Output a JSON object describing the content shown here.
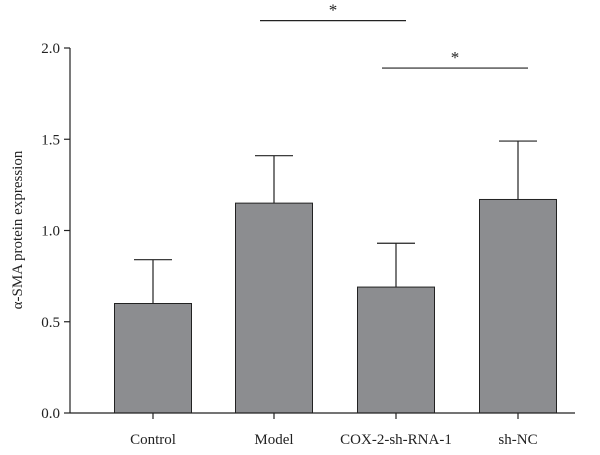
{
  "chart_data": {
    "type": "bar",
    "ylabel": "α-SMA protein expression",
    "categories": [
      "Control",
      "Model",
      "COX-2-sh-RNA-1",
      "sh-NC"
    ],
    "values": [
      0.6,
      1.15,
      0.69,
      1.17
    ],
    "errors": [
      0.24,
      0.26,
      0.24,
      0.32
    ],
    "ylim": [
      0,
      2.0
    ],
    "yticks": [
      "0.0",
      "0.5",
      "1.0",
      "1.5",
      "2.0"
    ],
    "bar_color": "#8c8d90",
    "grid": false,
    "legend": "none",
    "significance": [
      {
        "from": "Model",
        "to": "COX-2-sh-RNA-1",
        "label": "*",
        "y": 2.15
      },
      {
        "from": "COX-2-sh-RNA-1",
        "to": "sh-NC",
        "label": "*",
        "y": 1.89
      }
    ]
  }
}
